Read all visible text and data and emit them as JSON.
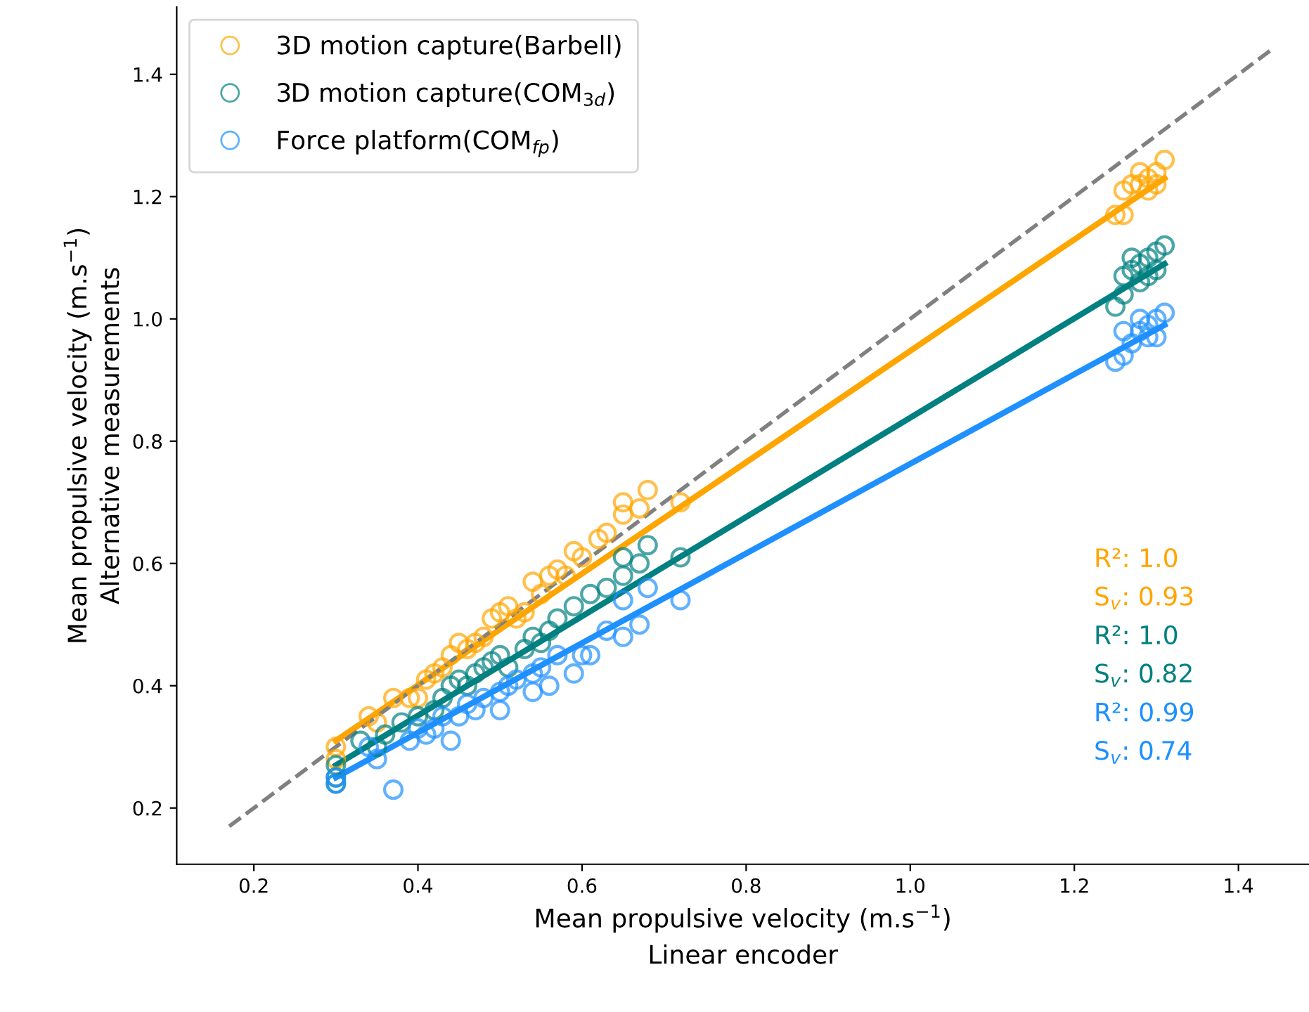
{
  "chart_data": {
    "type": "scatter",
    "xlabel": "Mean propulsive velocity (m.s$^{−1}$)\nLinear encoder",
    "ylabel": "Mean propulsive velocity (m.s$^{−1}$)\nAlternative measurements",
    "xlim": [
      0.106,
      1.486
    ],
    "ylim": [
      0.108,
      1.51
    ],
    "xticks": [
      0.2,
      0.4,
      0.6,
      0.8,
      {
        "value": 1.0,
        "label": "1.0"
      },
      1.2,
      1.4
    ],
    "yticks": [
      0.2,
      0.4,
      0.6,
      0.8,
      {
        "value": 1.0,
        "label": "1.0"
      },
      1.2,
      1.4
    ],
    "grid": false,
    "legend": "top left",
    "series": [
      {
        "name": "3D motion capture(Barbell)",
        "marker": "circle",
        "color": "#ffa500",
        "x": [
          0.3,
          0.3,
          0.34,
          0.35,
          0.37,
          0.39,
          0.4,
          0.41,
          0.42,
          0.43,
          0.44,
          0.45,
          0.46,
          0.47,
          0.48,
          0.49,
          0.5,
          0.51,
          0.52,
          0.53,
          0.54,
          0.55,
          0.56,
          0.57,
          0.58,
          0.59,
          0.6,
          0.62,
          0.63,
          0.65,
          0.65,
          0.67,
          0.68,
          0.72,
          1.25,
          1.26,
          1.26,
          1.27,
          1.28,
          1.29,
          1.29,
          1.3,
          1.3,
          1.31,
          1.28
        ],
        "values": [
          0.3,
          0.28,
          0.35,
          0.34,
          0.38,
          0.38,
          0.38,
          0.41,
          0.42,
          0.43,
          0.45,
          0.47,
          0.46,
          0.47,
          0.48,
          0.51,
          0.52,
          0.53,
          0.51,
          0.52,
          0.57,
          0.55,
          0.58,
          0.59,
          0.58,
          0.62,
          0.61,
          0.64,
          0.65,
          0.7,
          0.68,
          0.69,
          0.72,
          0.7,
          1.17,
          1.17,
          1.21,
          1.22,
          1.24,
          1.23,
          1.21,
          1.24,
          1.22,
          1.26,
          1.22
        ]
      },
      {
        "name": "3D motion capture(COM$_{3d}$)",
        "marker": "circle",
        "color": "#008080",
        "x": [
          0.3,
          0.3,
          0.3,
          0.33,
          0.35,
          0.36,
          0.38,
          0.4,
          0.42,
          0.43,
          0.44,
          0.45,
          0.46,
          0.47,
          0.48,
          0.49,
          0.5,
          0.51,
          0.53,
          0.54,
          0.55,
          0.56,
          0.57,
          0.59,
          0.61,
          0.63,
          0.65,
          0.65,
          0.67,
          0.68,
          0.72,
          1.25,
          1.26,
          1.26,
          1.27,
          1.27,
          1.28,
          1.28,
          1.29,
          1.29,
          1.3,
          1.3,
          1.31
        ],
        "values": [
          0.25,
          0.27,
          0.24,
          0.31,
          0.3,
          0.32,
          0.34,
          0.35,
          0.36,
          0.38,
          0.4,
          0.41,
          0.4,
          0.42,
          0.43,
          0.44,
          0.45,
          0.43,
          0.46,
          0.48,
          0.47,
          0.49,
          0.51,
          0.53,
          0.55,
          0.56,
          0.61,
          0.58,
          0.6,
          0.63,
          0.61,
          1.02,
          1.04,
          1.07,
          1.08,
          1.1,
          1.06,
          1.09,
          1.1,
          1.07,
          1.08,
          1.11,
          1.12
        ]
      },
      {
        "name": "Force platform(COM$_{fp}$)",
        "marker": "circle",
        "color": "#1e90ff",
        "x": [
          0.3,
          0.3,
          0.34,
          0.35,
          0.37,
          0.39,
          0.4,
          0.41,
          0.42,
          0.43,
          0.44,
          0.45,
          0.46,
          0.47,
          0.48,
          0.5,
          0.5,
          0.51,
          0.52,
          0.54,
          0.54,
          0.55,
          0.56,
          0.57,
          0.59,
          0.6,
          0.61,
          0.63,
          0.65,
          0.65,
          0.67,
          0.68,
          0.72,
          1.25,
          1.26,
          1.26,
          1.27,
          1.28,
          1.28,
          1.29,
          1.29,
          1.3,
          1.3,
          1.31
        ],
        "values": [
          0.24,
          0.25,
          0.3,
          0.28,
          0.23,
          0.31,
          0.33,
          0.32,
          0.33,
          0.35,
          0.31,
          0.35,
          0.37,
          0.36,
          0.38,
          0.36,
          0.39,
          0.4,
          0.41,
          0.39,
          0.42,
          0.43,
          0.4,
          0.45,
          0.42,
          0.45,
          0.45,
          0.49,
          0.48,
          0.54,
          0.5,
          0.56,
          0.54,
          0.93,
          0.94,
          0.98,
          0.96,
          0.98,
          1.0,
          0.97,
          0.99,
          0.97,
          1.0,
          1.01
        ]
      },
      {
        "type": "line",
        "marker": "none",
        "line_style": "solid",
        "color": "#ffa500",
        "x": [
          0.3,
          1.31
        ],
        "values": [
          0.31,
          1.23
        ]
      },
      {
        "type": "line",
        "marker": "none",
        "line_style": "solid",
        "color": "#008080",
        "x": [
          0.3,
          1.31
        ],
        "values": [
          0.27,
          1.09
        ]
      },
      {
        "type": "line",
        "marker": "none",
        "line_style": "solid",
        "color": "#1e90ff",
        "x": [
          0.3,
          1.31
        ],
        "values": [
          0.25,
          0.99
        ]
      },
      {
        "type": "line",
        "marker": "none",
        "line_style": "dashed",
        "color": "#808080",
        "x": [
          0.17,
          1.44
        ],
        "values": [
          0.17,
          1.44
        ]
      }
    ],
    "annotations": [
      "R²: 1.0",
      "S$_{v}$: 0.93",
      "R²: 1.0",
      "S$_{v}$: 0.82",
      "R²: 0.99",
      "S$_{v}$: 0.74"
    ]
  }
}
